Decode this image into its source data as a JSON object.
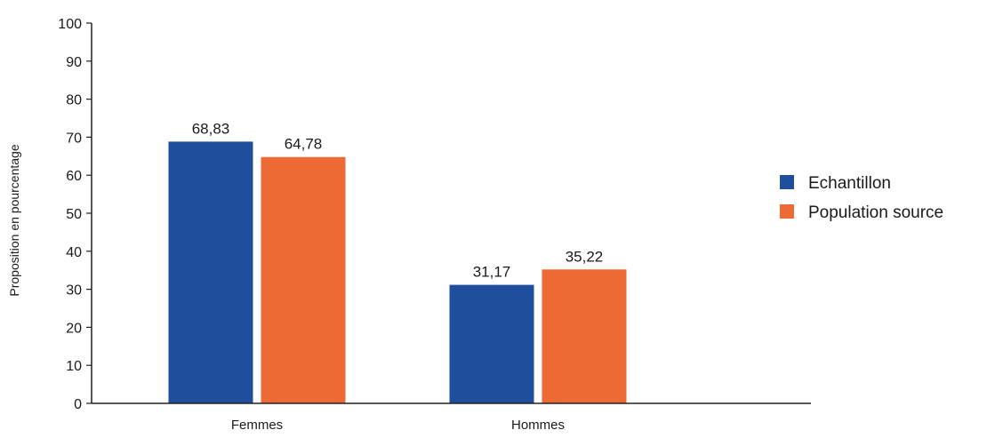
{
  "chart_data": {
    "type": "bar",
    "categories": [
      "Femmes",
      "Hommes"
    ],
    "series": [
      {
        "name": "Echantillon",
        "values": [
          68.83,
          31.17
        ],
        "labels": [
          "68,83",
          "31,17"
        ],
        "color": "#1f4e9c"
      },
      {
        "name": "Population source",
        "values": [
          64.78,
          35.22
        ],
        "labels": [
          "64,78",
          "35,22"
        ],
        "color": "#ee6a35"
      }
    ],
    "ylabel": "Proposition en pourcentage",
    "xlabel": "",
    "ylim": [
      0,
      100
    ],
    "yticks": [
      0,
      10,
      20,
      30,
      40,
      50,
      60,
      70,
      80,
      90,
      100
    ],
    "grid": false,
    "legend_position": "right"
  }
}
